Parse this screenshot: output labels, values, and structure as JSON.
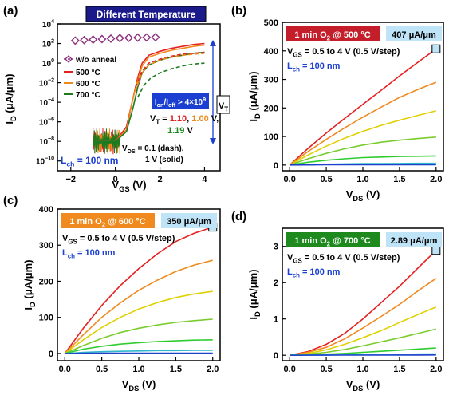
{
  "chart_data": [
    {
      "type": "line",
      "panel_label": "(a)",
      "title": "Different Temperature",
      "xlabel": "V_GS (V)",
      "ylabel": "I_D (μA/μm)",
      "xlim": [
        -2.6,
        4.7
      ],
      "ylim_log10": [
        -11,
        4
      ],
      "y_log": true,
      "xticks": [
        -2,
        0,
        2,
        4
      ],
      "yticks_exp": [
        4,
        2,
        0,
        -2,
        -4,
        -6,
        -8,
        -10
      ],
      "legend": {
        "placement": "center-left",
        "entries": [
          {
            "label": "w/o anneal",
            "color": "#8B2F7D",
            "marker": "diamond"
          },
          {
            "label": "500 °C",
            "color": "#E62020"
          },
          {
            "label": "600 °C",
            "color": "#F08A1E"
          },
          {
            "label": "700 °C",
            "color": "#1E7A1E"
          }
        ]
      },
      "annotations": {
        "vt_label": "V_T",
        "ratio_box": "I_on/I_off > 4×10^9",
        "vt_prefix": "V_T = ",
        "vt_500": "1.10",
        "vt_600": "1.00",
        "vt_700": "1.19",
        "vt_suffix": "V,",
        "vt_unit": " V",
        "vds_note_1": "V_DS = 0.1 (dash),",
        "vds_note_2": "1 V (solid)",
        "lch": "L_ch = 100 nm"
      },
      "series": [
        {
          "name": "w/o anneal",
          "color": "#8B2F7D",
          "style": "marker",
          "x": [
            -1.8,
            -1.4,
            -1.0,
            -0.6,
            -0.2,
            0.2,
            0.6,
            1.0,
            1.4,
            1.8
          ],
          "y_log10": [
            2.3,
            2.35,
            2.4,
            2.45,
            2.5,
            2.55,
            2.58,
            2.6,
            2.62,
            2.64
          ]
        },
        {
          "name": "500 °C",
          "color": "#E62020",
          "style": "solid",
          "x": [
            -1.0,
            0,
            0.5,
            0.8,
            1.0,
            1.2,
            1.5,
            2.0,
            2.5,
            3.0,
            3.5,
            4.0
          ],
          "y_log10": [
            -8,
            -8,
            -6.5,
            -3.5,
            -1.5,
            0,
            0.8,
            1.2,
            1.5,
            1.7,
            1.9,
            2.0
          ]
        },
        {
          "name": "600 °C",
          "color": "#F08A1E",
          "style": "solid",
          "x": [
            -1.0,
            0,
            0.5,
            0.8,
            1.0,
            1.2,
            1.5,
            2.0,
            2.5,
            3.0,
            3.5,
            4.0
          ],
          "y_log10": [
            -8,
            -8,
            -6.8,
            -3.5,
            -1.8,
            -0.3,
            0.6,
            1.0,
            1.3,
            1.5,
            1.7,
            1.85
          ]
        },
        {
          "name": "700 °C",
          "color": "#1E7A1E",
          "style": "solid",
          "x": [
            -1.0,
            0,
            0.5,
            0.8,
            1.0,
            1.2,
            1.5,
            2.0,
            2.5,
            3.0,
            3.5,
            4.0
          ],
          "y_log10": [
            -8,
            -8,
            -7.0,
            -4.5,
            -2.5,
            -1.0,
            -0.2,
            0.3,
            0.6,
            0.8,
            1.0,
            1.1
          ]
        },
        {
          "name": "500 °C",
          "color": "#E62020",
          "style": "dash",
          "x": [
            0.9,
            1.2,
            1.5,
            2.0,
            2.5,
            3.0,
            3.5,
            4.0
          ],
          "y_log10": [
            -2.5,
            -0.8,
            0,
            0.4,
            0.7,
            0.9,
            1.0,
            1.1
          ]
        },
        {
          "name": "600 °C",
          "color": "#F08A1E",
          "style": "dash",
          "x": [
            0.9,
            1.2,
            1.5,
            2.0,
            2.5,
            3.0,
            3.5,
            4.0
          ],
          "y_log10": [
            -2.8,
            -1.0,
            -0.2,
            0.3,
            0.6,
            0.8,
            0.9,
            1.0
          ]
        },
        {
          "name": "700 °C",
          "color": "#1E7A1E",
          "style": "dash",
          "x": [
            1.0,
            1.3,
            1.6,
            2.0,
            2.5,
            3.0,
            3.5,
            4.0
          ],
          "y_log10": [
            -3.5,
            -2.2,
            -1.5,
            -1.0,
            -0.6,
            -0.3,
            -0.1,
            0.0
          ]
        }
      ]
    },
    {
      "type": "line",
      "panel_label": "(b)",
      "xlabel": "V_DS (V)",
      "ylabel": "I_D (μA/μm)",
      "xlim": [
        -0.1,
        2.1
      ],
      "ylim": [
        -20,
        500
      ],
      "xticks": [
        0.0,
        0.5,
        1.0,
        1.5,
        2.0
      ],
      "yticks": [
        0,
        100,
        200,
        300,
        400,
        500
      ],
      "label_box": {
        "text": "1 min O_2 @ 500 °C",
        "color": "#C41E2A"
      },
      "value_box": "407 μA/μm",
      "vgs_note": "V_GS = 0.5 to 4 V (0.5 V/step)",
      "lch": "L_ch = 100 nm",
      "marker": {
        "x": 2.0,
        "y": 407
      },
      "x": [
        0,
        0.25,
        0.5,
        0.75,
        1.0,
        1.25,
        1.5,
        1.75,
        2.0
      ],
      "series": [
        {
          "color": "#E62020",
          "values": [
            0,
            58,
            112,
            163,
            213,
            262,
            312,
            360,
            407
          ]
        },
        {
          "color": "#F08A1E",
          "values": [
            0,
            47,
            90,
            130,
            168,
            203,
            237,
            265,
            290
          ]
        },
        {
          "color": "#E0D000",
          "values": [
            0,
            35,
            66,
            94,
            118,
            139,
            157,
            174,
            190
          ]
        },
        {
          "color": "#7ACC2E",
          "values": [
            0,
            22,
            41,
            57,
            70,
            80,
            87,
            93,
            98
          ]
        },
        {
          "color": "#2ECC2E",
          "values": [
            0,
            10,
            17,
            22,
            26,
            28,
            30,
            31,
            32
          ]
        },
        {
          "color": "#2EB8CC",
          "values": [
            0,
            2,
            3,
            4,
            5,
            5,
            5.5,
            6,
            6
          ]
        },
        {
          "color": "#2040CC",
          "values": [
            0,
            0.5,
            1,
            1,
            1,
            1,
            1,
            1,
            1
          ]
        }
      ]
    },
    {
      "type": "line",
      "panel_label": "(c)",
      "xlabel": "V_DS (V)",
      "ylabel": "I_D (μA/μm)",
      "xlim": [
        -0.1,
        2.1
      ],
      "ylim": [
        -20,
        400
      ],
      "xticks": [
        0.0,
        0.5,
        1.0,
        1.5,
        2.0
      ],
      "yticks": [
        0,
        100,
        200,
        300,
        400
      ],
      "label_box": {
        "text": "1 min O_2 @ 600 °C",
        "color": "#F08A1E"
      },
      "value_box": "350 μA/μm",
      "vgs_note": "V_GS = 0.5 to 4 V (0.5 V/step)",
      "lch": "L_ch = 100 nm",
      "marker": {
        "x": 2.0,
        "y": 350
      },
      "x": [
        0,
        0.25,
        0.5,
        0.75,
        1.0,
        1.25,
        1.5,
        1.75,
        2.0
      ],
      "series": [
        {
          "color": "#E62020",
          "values": [
            0,
            70,
            133,
            188,
            235,
            276,
            310,
            333,
            350
          ]
        },
        {
          "color": "#F08A1E",
          "values": [
            0,
            52,
            100,
            140,
            175,
            203,
            227,
            245,
            258
          ]
        },
        {
          "color": "#E0D000",
          "values": [
            0,
            38,
            72,
            100,
            123,
            141,
            155,
            165,
            172
          ]
        },
        {
          "color": "#7ACC2E",
          "values": [
            0,
            22,
            42,
            58,
            70,
            79,
            86,
            91,
            95
          ]
        },
        {
          "color": "#2ECC2E",
          "values": [
            0,
            12,
            20,
            26,
            30,
            33,
            35,
            37,
            38
          ]
        },
        {
          "color": "#2EB8CC",
          "values": [
            0,
            3,
            5,
            6,
            7,
            8,
            8,
            9,
            9
          ]
        },
        {
          "color": "#2040CC",
          "values": [
            0,
            0.5,
            1,
            1,
            1,
            1,
            1,
            1,
            1
          ]
        }
      ]
    },
    {
      "type": "line",
      "panel_label": "(d)",
      "xlabel": "V_DS (V)",
      "ylabel": "I_D (μA/μm)",
      "xlim": [
        -0.1,
        2.1
      ],
      "ylim": [
        -0.15,
        3.5
      ],
      "xticks": [
        0.0,
        0.5,
        1.0,
        1.5,
        2.0
      ],
      "yticks": [
        0,
        1,
        2,
        3
      ],
      "label_box": {
        "text": "1 min O_2 @ 700 °C",
        "color": "#1E8A1E"
      },
      "value_box": "2.89 μA/μm",
      "vgs_note": "V_GS = 0.5 to 4 V (0.5 V/step)",
      "lch": "L_ch = 100 nm",
      "marker": {
        "x": 2.0,
        "y": 2.89
      },
      "x": [
        0,
        0.25,
        0.5,
        0.75,
        1.0,
        1.25,
        1.5,
        1.75,
        2.0
      ],
      "series": [
        {
          "color": "#E62020",
          "values": [
            0,
            0.1,
            0.3,
            0.6,
            1.0,
            1.45,
            1.9,
            2.4,
            2.89
          ]
        },
        {
          "color": "#F08A1E",
          "values": [
            0,
            0.08,
            0.22,
            0.45,
            0.75,
            1.07,
            1.4,
            1.77,
            2.12
          ]
        },
        {
          "color": "#E0D000",
          "values": [
            0,
            0.05,
            0.15,
            0.3,
            0.48,
            0.68,
            0.9,
            1.12,
            1.33
          ]
        },
        {
          "color": "#7ACC2E",
          "values": [
            0,
            0.03,
            0.08,
            0.16,
            0.26,
            0.37,
            0.48,
            0.6,
            0.72
          ]
        },
        {
          "color": "#2ECC2E",
          "values": [
            0,
            0.01,
            0.03,
            0.05,
            0.08,
            0.11,
            0.14,
            0.17,
            0.2
          ]
        },
        {
          "color": "#2EB8CC",
          "values": [
            0,
            0.003,
            0.008,
            0.012,
            0.017,
            0.022,
            0.027,
            0.032,
            0.037
          ]
        },
        {
          "color": "#2040CC",
          "values": [
            0,
            0.001,
            0.002,
            0.003,
            0.004,
            0.005,
            0.006,
            0.007,
            0.008
          ]
        }
      ]
    }
  ]
}
